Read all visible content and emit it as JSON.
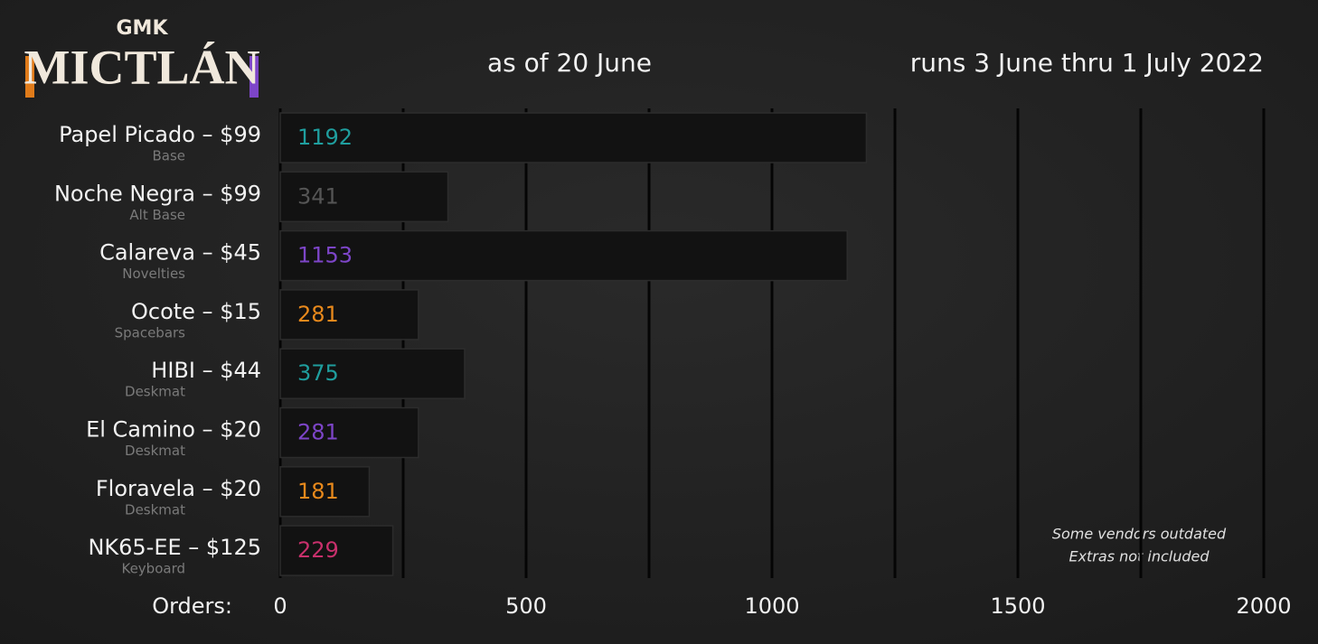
{
  "chart_data": {
    "type": "hbar",
    "brand": "GMK",
    "title": "MICTLÁN",
    "subtitle": "as of 20 June",
    "run_dates": "runs 3 June thru 1 July 2022",
    "x_label": "Orders:",
    "categories": [
      "Papel Picado – $99",
      "Noche Negra – $99",
      "Calareva – $45",
      "Ocote – $15",
      "HIBI – $44",
      "El Camino – $20",
      "Floravela – $20",
      "NK65-EE – $125"
    ],
    "category_notes": [
      "Base",
      "Alt Base",
      "Novelties",
      "Spacebars",
      "Deskmat",
      "Deskmat",
      "Deskmat",
      "Keyboard"
    ],
    "values": [
      1192,
      341,
      1153,
      281,
      375,
      281,
      181,
      229
    ],
    "value_label_colors": [
      "#1f9e9e",
      "#555555",
      "#7d45c8",
      "#e8891c",
      "#1f9e9e",
      "#7d45c8",
      "#e8891c",
      "#c8306c"
    ],
    "color": "#121212",
    "xlim": [
      0,
      2000
    ],
    "xticks": [
      0,
      500,
      1000,
      1500,
      2000
    ],
    "minor_xticks": [
      250,
      750,
      1250,
      1750
    ],
    "grid": true,
    "annotations": [
      "Some vendors outdated",
      "Extras not included"
    ]
  }
}
